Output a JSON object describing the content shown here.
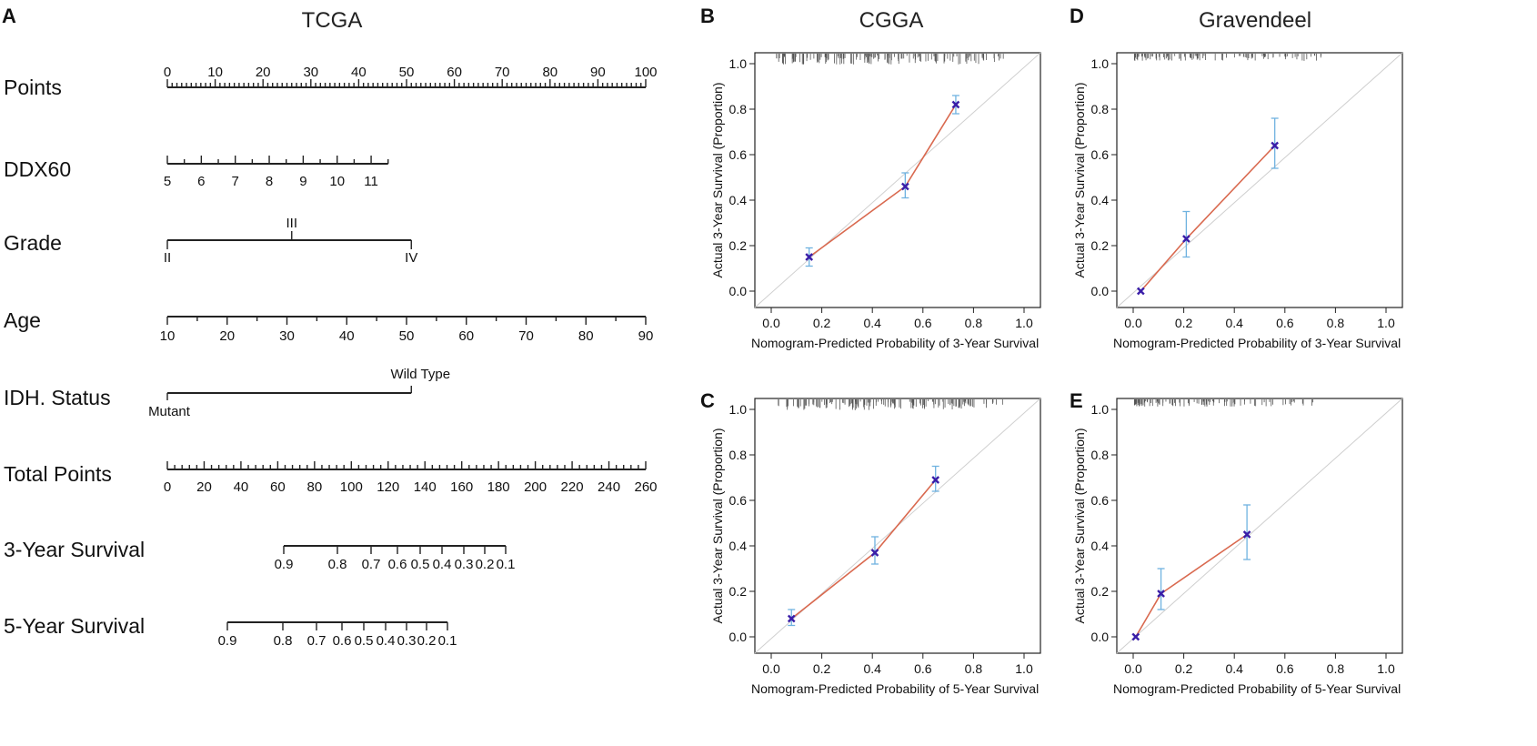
{
  "panels": {
    "A": {
      "letter": "A",
      "title": "TCGA"
    },
    "B": {
      "letter": "B",
      "title": "CGGA"
    },
    "C": {
      "letter": "C",
      "title": ""
    },
    "D": {
      "letter": "D",
      "title": "Gravendeel"
    },
    "E": {
      "letter": "E",
      "title": ""
    }
  },
  "chart_data": [
    {
      "id": "A",
      "type": "nomogram",
      "title": "TCGA",
      "rows": [
        {
          "label": "Points",
          "min": 0,
          "max": 100,
          "ticks": [
            "0",
            "10",
            "20",
            "30",
            "40",
            "50",
            "60",
            "70",
            "80",
            "90",
            "100"
          ]
        },
        {
          "label": "DDX60",
          "ticks": [
            "5",
            "6",
            "7",
            "8",
            "9",
            "10",
            "11"
          ]
        },
        {
          "label": "Grade",
          "ticks": [
            "II",
            "III",
            "IV"
          ]
        },
        {
          "label": "Age",
          "min": 10,
          "max": 90,
          "ticks": [
            "10",
            "20",
            "30",
            "40",
            "50",
            "60",
            "70",
            "80",
            "90"
          ]
        },
        {
          "label": "IDH. Status",
          "ticks": [
            "Mutant",
            "Wild Type"
          ]
        },
        {
          "label": "Total Points",
          "min": 0,
          "max": 260,
          "ticks": [
            "0",
            "20",
            "40",
            "60",
            "80",
            "100",
            "120",
            "140",
            "160",
            "180",
            "200",
            "220",
            "240",
            "260"
          ]
        },
        {
          "label": "3-Year Survival",
          "ticks": [
            "0.9",
            "0.8",
            "0.7",
            "0.6",
            "0.5",
            "0.4",
            "0.3",
            "0.2",
            "0.1"
          ]
        },
        {
          "label": "5-Year Survival",
          "ticks": [
            "0.9",
            "0.8",
            "0.7",
            "0.6",
            "0.5",
            "0.4",
            "0.3",
            "0.2",
            "0.1"
          ]
        }
      ]
    },
    {
      "id": "B",
      "type": "scatter",
      "title": "CGGA",
      "xlabel": "Nomogram-Predicted  Probability of 3-Year  Survival",
      "ylabel": "Actual 3-Year Survival (Proportion)",
      "xlim": [
        0,
        1
      ],
      "ylim": [
        0,
        1
      ],
      "xticks": [
        "0.0",
        "0.2",
        "0.4",
        "0.6",
        "0.8",
        "1.0"
      ],
      "yticks": [
        "0.0",
        "0.2",
        "0.4",
        "0.6",
        "0.8",
        "1.0"
      ],
      "x": [
        0.15,
        0.53,
        0.73
      ],
      "y": [
        0.15,
        0.46,
        0.82
      ],
      "ci_low": [
        0.11,
        0.41,
        0.78
      ],
      "ci_high": [
        0.19,
        0.52,
        0.86
      ]
    },
    {
      "id": "C",
      "type": "scatter",
      "title": "",
      "xlabel": "Nomogram-Predicted  Probability of 5-Year  Survival",
      "ylabel": "Actual 3-Year Survival (Proportion)",
      "xlim": [
        0,
        1
      ],
      "ylim": [
        0,
        1
      ],
      "xticks": [
        "0.0",
        "0.2",
        "0.4",
        "0.6",
        "0.8",
        "1.0"
      ],
      "yticks": [
        "0.0",
        "0.2",
        "0.4",
        "0.6",
        "0.8",
        "1.0"
      ],
      "x": [
        0.08,
        0.41,
        0.65
      ],
      "y": [
        0.08,
        0.37,
        0.69
      ],
      "ci_low": [
        0.05,
        0.32,
        0.64
      ],
      "ci_high": [
        0.12,
        0.44,
        0.75
      ]
    },
    {
      "id": "D",
      "type": "scatter",
      "title": "Gravendeel",
      "xlabel": "Nomogram-Predicted  Probability of 3-Year  Survival",
      "ylabel": "Actual 3-Year Survival (Proportion)",
      "xlim": [
        0,
        1
      ],
      "ylim": [
        0,
        1
      ],
      "xticks": [
        "0.0",
        "0.2",
        "0.4",
        "0.6",
        "0.8",
        "1.0"
      ],
      "yticks": [
        "0.0",
        "0.2",
        "0.4",
        "0.6",
        "0.8",
        "1.0"
      ],
      "x": [
        0.03,
        0.21,
        0.56
      ],
      "y": [
        0.0,
        0.23,
        0.64
      ],
      "ci_low": [
        0.0,
        0.15,
        0.54
      ],
      "ci_high": [
        0.0,
        0.35,
        0.76
      ]
    },
    {
      "id": "E",
      "type": "scatter",
      "title": "",
      "xlabel": "Nomogram-Predicted  Probability of 5-Year  Survival",
      "ylabel": "Actual 3-Year Survival (Proportion)",
      "xlim": [
        0,
        1
      ],
      "ylim": [
        0,
        1
      ],
      "xticks": [
        "0.0",
        "0.2",
        "0.4",
        "0.6",
        "0.8",
        "1.0"
      ],
      "yticks": [
        "0.0",
        "0.2",
        "0.4",
        "0.6",
        "0.8",
        "1.0"
      ],
      "x": [
        0.01,
        0.11,
        0.45
      ],
      "y": [
        0.0,
        0.19,
        0.45
      ],
      "ci_low": [
        0.0,
        0.12,
        0.34
      ],
      "ci_high": [
        0.0,
        0.3,
        0.58
      ]
    }
  ],
  "colors": {
    "line": "#d9694f",
    "point": "#3a1ea8",
    "errorbar": "#6fb2e0",
    "diagonal": "#cfcfcf",
    "rug": "#555555",
    "axis": "#222222"
  }
}
